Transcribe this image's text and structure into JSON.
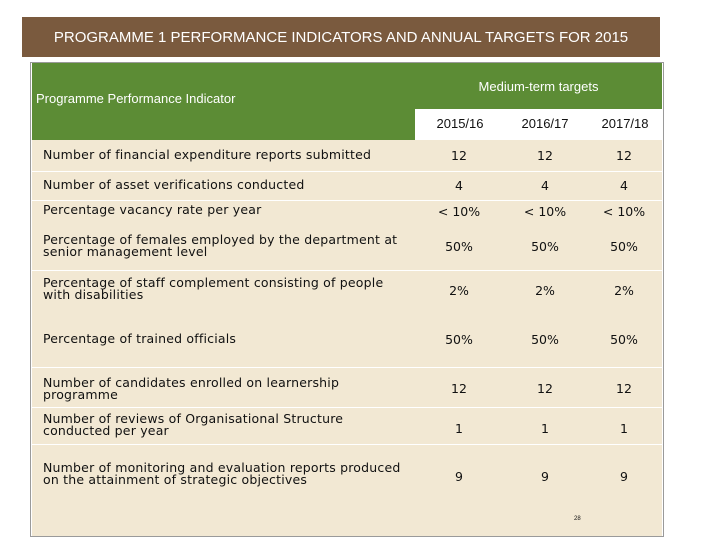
{
  "title": "PROGRAMME 1 PERFORMANCE INDICATORS AND ANNUAL TARGETS FOR 2015",
  "header": {
    "indicator_label": "Programme Performance Indicator",
    "medium_term_label": "Medium-term targets",
    "years": [
      "2015/16",
      "2016/17",
      "2017/18"
    ]
  },
  "rows": [
    {
      "label": "Number of financial expenditure reports submitted",
      "values": [
        "12",
        "12",
        "12"
      ]
    },
    {
      "label": "Number of asset verifications conducted",
      "values": [
        "4",
        "4",
        "4"
      ]
    },
    {
      "label": "Percentage vacancy rate per year",
      "values": [
        "< 10%",
        "< 10%",
        "< 10%"
      ]
    },
    {
      "label": "Percentage of females employed by the department at senior management level",
      "values": [
        "50%",
        "50%",
        "50%"
      ]
    },
    {
      "label": "Percentage of staff complement consisting of people with disabilities",
      "values": [
        "2%",
        "2%",
        "2%"
      ]
    },
    {
      "label": "Percentage of trained officials",
      "values": [
        "50%",
        "50%",
        "50%"
      ]
    },
    {
      "label": "Number of candidates enrolled on learnership programme",
      "values": [
        "12",
        "12",
        "12"
      ]
    },
    {
      "label": "Number of reviews of Organisational Structure conducted per year",
      "values": [
        "1",
        "1",
        "1"
      ]
    },
    {
      "label": "Number of monitoring and evaluation reports produced on the attainment of strategic objectives",
      "values": [
        "9",
        "9",
        "9"
      ]
    }
  ],
  "page_number": "28",
  "colors": {
    "title_bg": "#7a5a3e",
    "header_bg": "#5c8c35",
    "row_bg": "#f2e8d3"
  }
}
